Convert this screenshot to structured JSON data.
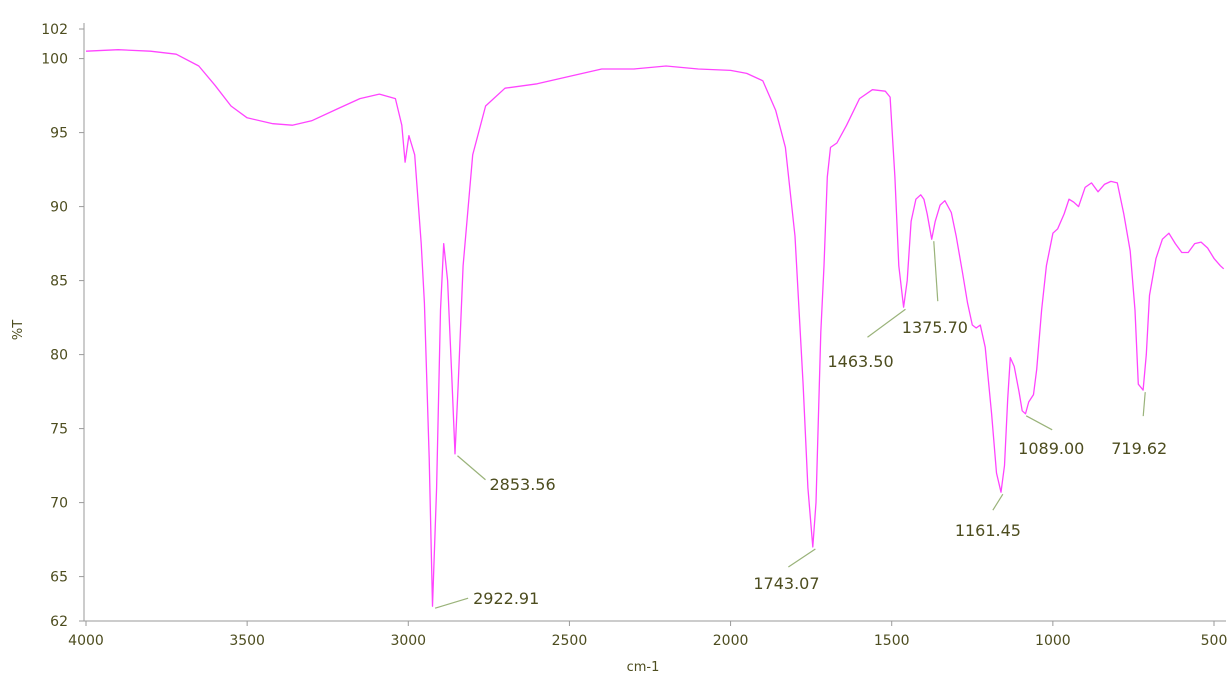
{
  "chart_data": {
    "type": "line",
    "title": "",
    "xlabel": "cm-1",
    "ylabel": "%T",
    "xlim": [
      4000,
      450
    ],
    "ylim": [
      62,
      102
    ],
    "x_reversed": true,
    "grid": false,
    "x_ticks": [
      4000,
      3500,
      3000,
      2500,
      2000,
      1500,
      1000,
      500
    ],
    "y_ticks": [
      62,
      65,
      70,
      75,
      80,
      85,
      90,
      95,
      100,
      102
    ],
    "line_color": "#ff44ff",
    "leader_color": "#9ab37a",
    "series": [
      {
        "points": [
          [
            4000,
            100.5
          ],
          [
            3900,
            100.6
          ],
          [
            3800,
            100.5
          ],
          [
            3720,
            100.3
          ],
          [
            3650,
            99.5
          ],
          [
            3600,
            98.2
          ],
          [
            3550,
            96.8
          ],
          [
            3500,
            96.0
          ],
          [
            3420,
            95.6
          ],
          [
            3360,
            95.5
          ],
          [
            3300,
            95.8
          ],
          [
            3220,
            96.6
          ],
          [
            3150,
            97.3
          ],
          [
            3090,
            97.6
          ],
          [
            3040,
            97.3
          ],
          [
            3020,
            95.5
          ],
          [
            3010,
            93.0
          ],
          [
            2998,
            94.8
          ],
          [
            2980,
            93.5
          ],
          [
            2960,
            87.5
          ],
          [
            2950,
            83.5
          ],
          [
            2935,
            73.0
          ],
          [
            2925,
            63.0
          ],
          [
            2912,
            71.0
          ],
          [
            2900,
            83.0
          ],
          [
            2890,
            87.5
          ],
          [
            2878,
            85.0
          ],
          [
            2865,
            78.5
          ],
          [
            2855,
            73.3
          ],
          [
            2845,
            78.0
          ],
          [
            2830,
            86.0
          ],
          [
            2800,
            93.5
          ],
          [
            2760,
            96.8
          ],
          [
            2700,
            98.0
          ],
          [
            2600,
            98.3
          ],
          [
            2500,
            98.8
          ],
          [
            2400,
            99.3
          ],
          [
            2300,
            99.3
          ],
          [
            2200,
            99.5
          ],
          [
            2100,
            99.3
          ],
          [
            2000,
            99.2
          ],
          [
            1950,
            99.0
          ],
          [
            1900,
            98.5
          ],
          [
            1860,
            96.5
          ],
          [
            1830,
            94.0
          ],
          [
            1800,
            88.0
          ],
          [
            1775,
            78.0
          ],
          [
            1760,
            71.0
          ],
          [
            1745,
            67.0
          ],
          [
            1735,
            70.0
          ],
          [
            1720,
            81.5
          ],
          [
            1710,
            86.0
          ],
          [
            1700,
            92.0
          ],
          [
            1690,
            94.0
          ],
          [
            1670,
            94.3
          ],
          [
            1640,
            95.5
          ],
          [
            1600,
            97.3
          ],
          [
            1560,
            97.9
          ],
          [
            1520,
            97.8
          ],
          [
            1505,
            97.4
          ],
          [
            1490,
            92.0
          ],
          [
            1478,
            86.0
          ],
          [
            1463,
            83.2
          ],
          [
            1452,
            85.0
          ],
          [
            1440,
            89.0
          ],
          [
            1425,
            90.5
          ],
          [
            1410,
            90.8
          ],
          [
            1400,
            90.5
          ],
          [
            1390,
            89.5
          ],
          [
            1376,
            87.8
          ],
          [
            1365,
            89.0
          ],
          [
            1350,
            90.1
          ],
          [
            1335,
            90.4
          ],
          [
            1315,
            89.6
          ],
          [
            1300,
            88.0
          ],
          [
            1280,
            85.5
          ],
          [
            1265,
            83.5
          ],
          [
            1250,
            82.0
          ],
          [
            1238,
            81.8
          ],
          [
            1225,
            82.0
          ],
          [
            1210,
            80.5
          ],
          [
            1190,
            76.0
          ],
          [
            1175,
            72.0
          ],
          [
            1161,
            70.7
          ],
          [
            1150,
            72.5
          ],
          [
            1140,
            77.0
          ],
          [
            1132,
            79.8
          ],
          [
            1120,
            79.2
          ],
          [
            1105,
            77.5
          ],
          [
            1095,
            76.2
          ],
          [
            1085,
            76.0
          ],
          [
            1075,
            76.8
          ],
          [
            1060,
            77.3
          ],
          [
            1050,
            79.0
          ],
          [
            1035,
            83.0
          ],
          [
            1020,
            86.0
          ],
          [
            1000,
            88.2
          ],
          [
            985,
            88.5
          ],
          [
            965,
            89.5
          ],
          [
            950,
            90.5
          ],
          [
            935,
            90.3
          ],
          [
            920,
            90.0
          ],
          [
            900,
            91.3
          ],
          [
            880,
            91.6
          ],
          [
            860,
            91.0
          ],
          [
            840,
            91.5
          ],
          [
            820,
            91.7
          ],
          [
            800,
            91.6
          ],
          [
            780,
            89.5
          ],
          [
            760,
            87.0
          ],
          [
            745,
            83.0
          ],
          [
            735,
            78.0
          ],
          [
            720,
            77.6
          ],
          [
            710,
            80.0
          ],
          [
            700,
            84.0
          ],
          [
            680,
            86.5
          ],
          [
            660,
            87.8
          ],
          [
            640,
            88.2
          ],
          [
            620,
            87.5
          ],
          [
            600,
            86.9
          ],
          [
            580,
            86.9
          ],
          [
            560,
            87.5
          ],
          [
            540,
            87.6
          ],
          [
            520,
            87.2
          ],
          [
            500,
            86.5
          ],
          [
            480,
            86.0
          ],
          [
            470,
            85.8
          ]
        ]
      }
    ],
    "annotations": [
      {
        "label": "2922.91",
        "x": 2922.91,
        "y": 63.0
      },
      {
        "label": "2853.56",
        "x": 2853.56,
        "y": 73.3
      },
      {
        "label": "1743.07",
        "x": 1743.07,
        "y": 67.0
      },
      {
        "label": "1463.50",
        "x": 1463.5,
        "y": 83.2
      },
      {
        "label": "1375.70",
        "x": 1375.7,
        "y": 87.8
      },
      {
        "label": "1161.45",
        "x": 1161.45,
        "y": 70.7
      },
      {
        "label": "1089.00",
        "x": 1089.0,
        "y": 76.0
      },
      {
        "label": "719.62",
        "x": 719.62,
        "y": 77.6
      }
    ]
  }
}
